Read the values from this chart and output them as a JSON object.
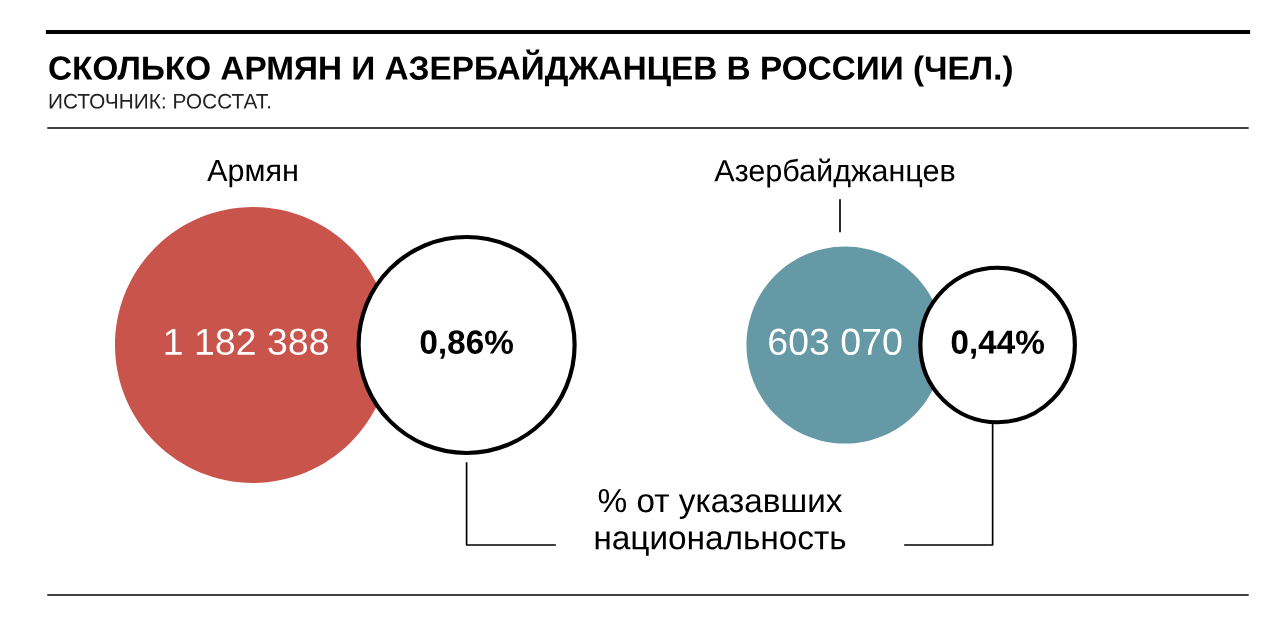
{
  "chart_data": {
    "type": "other",
    "title": "СКОЛЬКО АРМЯН И АЗЕРБАЙДЖАНЦЕВ В РОССИИ (ЧЕЛ.)",
    "subtitle": "ИСТОЧНИК: РОССТАТ.",
    "categories": [
      "Армян",
      "Азербайджанцев"
    ],
    "series": [
      {
        "type": "bubble",
        "colors": [
          "#c9544b",
          "#6699a6"
        ],
        "values": [
          1182388,
          603070
        ],
        "value_labels": [
          "1 182 388",
          "603 070"
        ]
      },
      {
        "type": "bubble",
        "colors": [
          "#ffffff",
          "#ffffff"
        ],
        "values": [
          0.86,
          0.44
        ],
        "value_labels": [
          "0,86%",
          "0,44%"
        ]
      }
    ],
    "annotations": [
      "% от указавших\nнациональность"
    ]
  }
}
